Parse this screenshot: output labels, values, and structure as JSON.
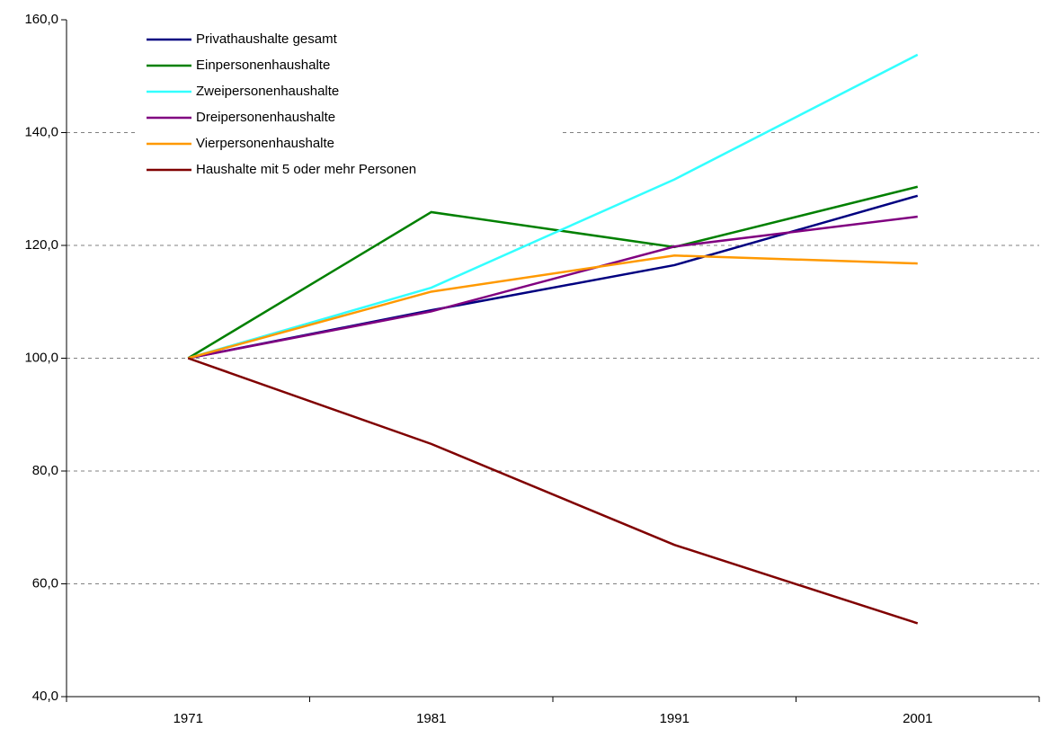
{
  "chart_data": {
    "type": "line",
    "categories": [
      "1971",
      "1981",
      "1991",
      "2001"
    ],
    "series": [
      {
        "name": "Privathaushalte gesamt",
        "color": "#000080",
        "values": [
          100,
          108.5,
          116.5,
          128.8
        ]
      },
      {
        "name": "Einpersonenhaushalte",
        "color": "#008000",
        "values": [
          100,
          125.9,
          119.7,
          130.4
        ]
      },
      {
        "name": "Zweipersonenhaushalte",
        "color": "#33ffff",
        "values": [
          100,
          112.5,
          131.7,
          153.8
        ]
      },
      {
        "name": "Dreipersonenhaushalte",
        "color": "#800080",
        "values": [
          100,
          108.3,
          119.8,
          125.1
        ]
      },
      {
        "name": "Vierpersonenhaushalte",
        "color": "#ff9900",
        "values": [
          100,
          111.8,
          118.2,
          116.8
        ]
      },
      {
        "name": "Haushalte mit 5 oder mehr Personen",
        "color": "#800000",
        "values": [
          100,
          84.8,
          66.9,
          53.0
        ]
      }
    ],
    "ylim": [
      40,
      160
    ],
    "yticks": [
      {
        "value": 40,
        "label": "40,0"
      },
      {
        "value": 60,
        "label": "60,0"
      },
      {
        "value": 80,
        "label": "80,0"
      },
      {
        "value": 100,
        "label": "100,0"
      },
      {
        "value": 120,
        "label": "120,0"
      },
      {
        "value": 140,
        "label": "140,0"
      },
      {
        "value": 160,
        "label": "160,0"
      }
    ],
    "grid": true,
    "legend": "top-left"
  }
}
